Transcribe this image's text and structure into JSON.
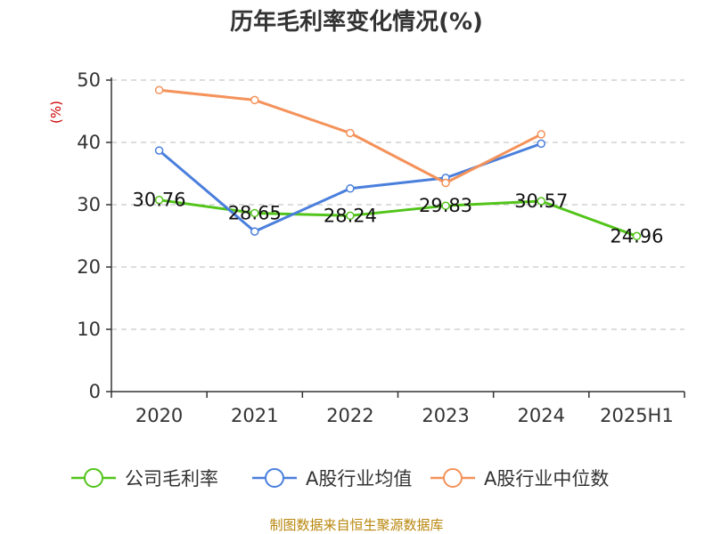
{
  "chart_data": {
    "type": "line",
    "title": "历年毛利率变化情况(%)",
    "ylabel": "(%)",
    "xlabel": "",
    "categories": [
      "2020",
      "2021",
      "2022",
      "2023",
      "2024",
      "2025H1"
    ],
    "ylim": [
      0,
      50
    ],
    "yticks": [
      0,
      10,
      20,
      30,
      40,
      50
    ],
    "grid": true,
    "legend_position": "bottom",
    "series": [
      {
        "name": "公司毛利率",
        "color": "#52c41a",
        "labeled": true,
        "values": [
          30.76,
          28.65,
          28.24,
          29.83,
          30.57,
          24.96
        ],
        "labels": [
          "30.76",
          "28.65",
          "28.24",
          "29.83",
          "30.57",
          "24.96"
        ]
      },
      {
        "name": "A股行业均值",
        "color": "#4a7fdc",
        "labeled": false,
        "values": [
          38.7,
          25.7,
          32.6,
          34.3,
          39.8,
          null
        ]
      },
      {
        "name": "A股行业中位数",
        "color": "#f4925a",
        "labeled": false,
        "values": [
          48.4,
          46.8,
          41.5,
          33.5,
          41.3,
          null
        ]
      }
    ]
  },
  "source": "制图数据来自恒生聚源数据库"
}
